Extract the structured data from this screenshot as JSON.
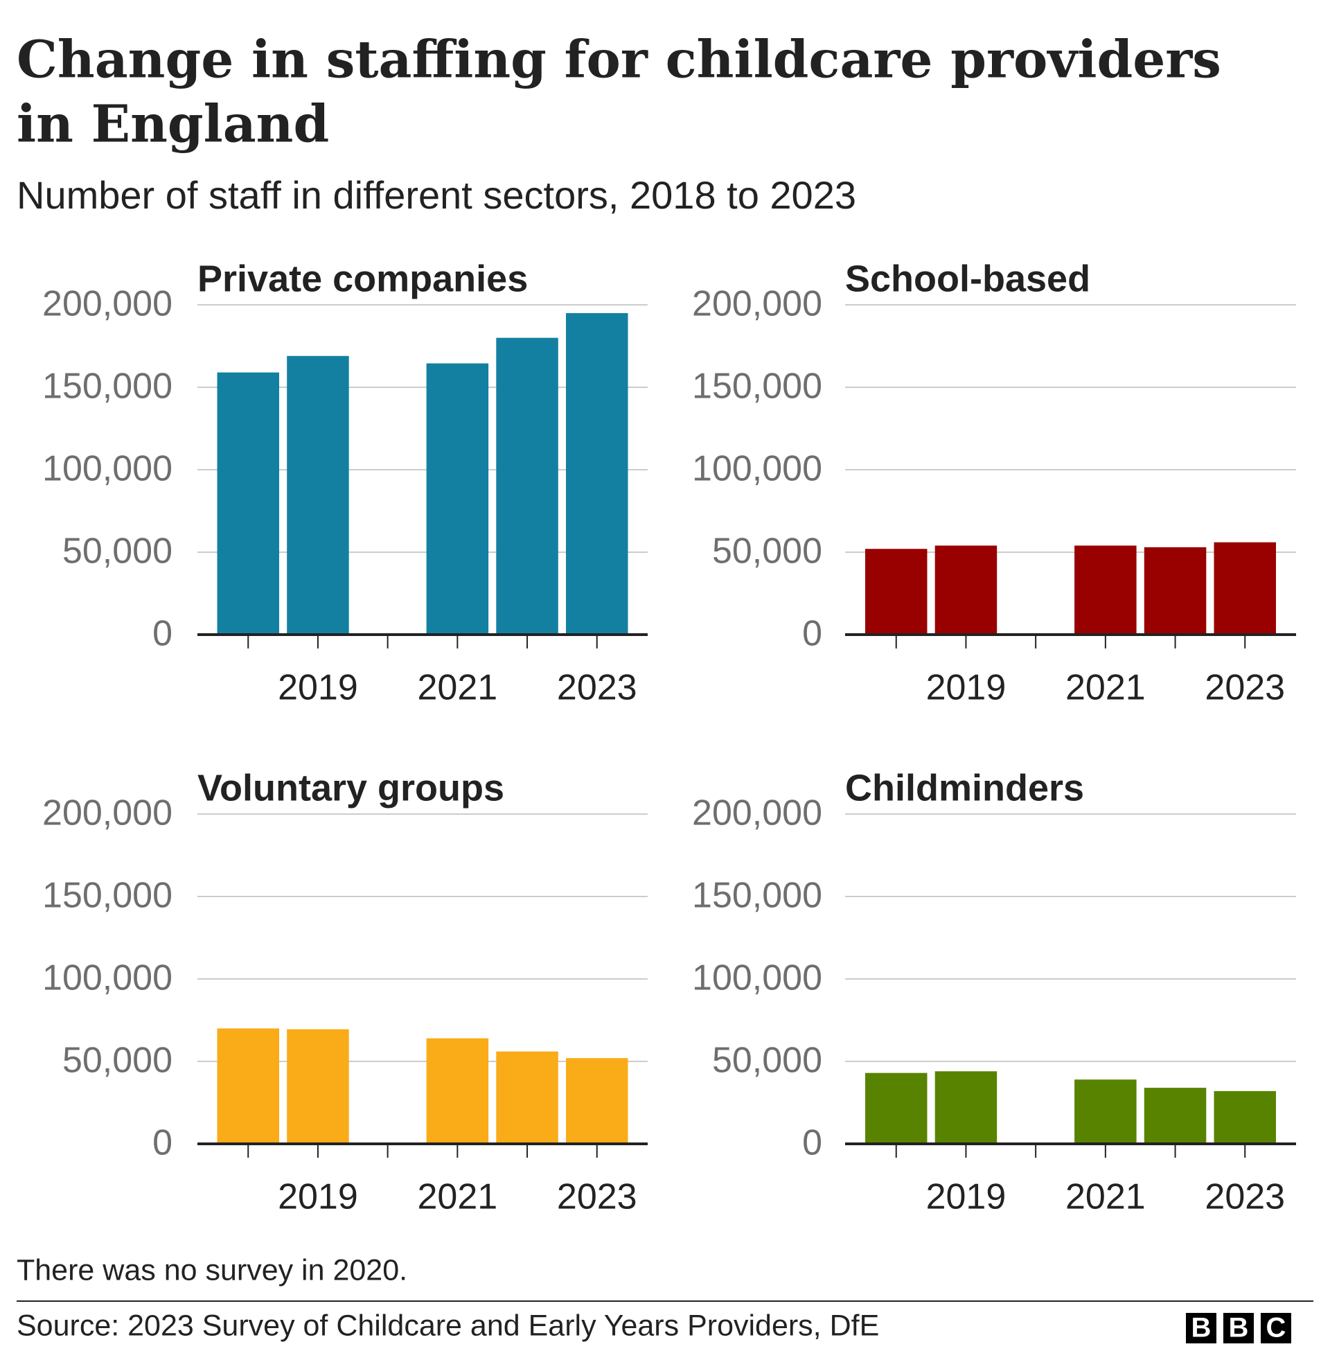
{
  "title_lines": [
    "Change in staffing for childcare providers",
    "in England"
  ],
  "subtitle": "Number of staff in different sectors, 2018 to 2023",
  "note": "There was no survey in 2020.",
  "source": "Source: 2023 Survey of Childcare and Early Years Providers, DfE",
  "logo_letters": [
    "B",
    "B",
    "C"
  ],
  "chart_data": [
    {
      "type": "bar",
      "title": "Private companies",
      "color": "#1380a1",
      "categories": [
        null,
        "2019",
        null,
        "2021",
        null,
        "2023"
      ],
      "values": [
        159000,
        169000,
        null,
        164500,
        180000,
        195000
      ],
      "ylim": [
        0,
        200000
      ],
      "yticks": [
        0,
        {
          "value": 50000,
          "label": "50,000"
        },
        {
          "value": 100000,
          "label": "100,000"
        },
        {
          "value": 150000,
          "label": "150,000"
        },
        {
          "value": 200000,
          "label": "200,000"
        }
      ],
      "grid": true
    },
    {
      "type": "bar",
      "title": "School-based",
      "color": "#990000",
      "categories": [
        null,
        "2019",
        null,
        "2021",
        null,
        "2023"
      ],
      "values": [
        52000,
        54000,
        null,
        54000,
        53000,
        56000
      ],
      "ylim": [
        0,
        200000
      ],
      "yticks": [
        0,
        {
          "value": 50000,
          "label": "50,000"
        },
        {
          "value": 100000,
          "label": "100,000"
        },
        {
          "value": 150000,
          "label": "150,000"
        },
        {
          "value": 200000,
          "label": "200,000"
        }
      ],
      "grid": true
    },
    {
      "type": "bar",
      "title": "Voluntary groups",
      "color": "#faab18",
      "categories": [
        null,
        "2019",
        null,
        "2021",
        null,
        "2023"
      ],
      "values": [
        70000,
        69500,
        null,
        64000,
        56000,
        52000
      ],
      "ylim": [
        0,
        200000
      ],
      "yticks": [
        0,
        {
          "value": 50000,
          "label": "50,000"
        },
        {
          "value": 100000,
          "label": "100,000"
        },
        {
          "value": 150000,
          "label": "150,000"
        },
        {
          "value": 200000,
          "label": "200,000"
        }
      ],
      "grid": true
    },
    {
      "type": "bar",
      "title": "Childminders",
      "color": "#588300",
      "categories": [
        null,
        "2019",
        null,
        "2021",
        null,
        "2023"
      ],
      "values": [
        43000,
        44000,
        null,
        39000,
        34000,
        32000
      ],
      "ylim": [
        0,
        200000
      ],
      "yticks": [
        0,
        {
          "value": 50000,
          "label": "50,000"
        },
        {
          "value": 100000,
          "label": "100,000"
        },
        {
          "value": 150000,
          "label": "150,000"
        },
        {
          "value": 200000,
          "label": "200,000"
        }
      ],
      "grid": true
    }
  ]
}
